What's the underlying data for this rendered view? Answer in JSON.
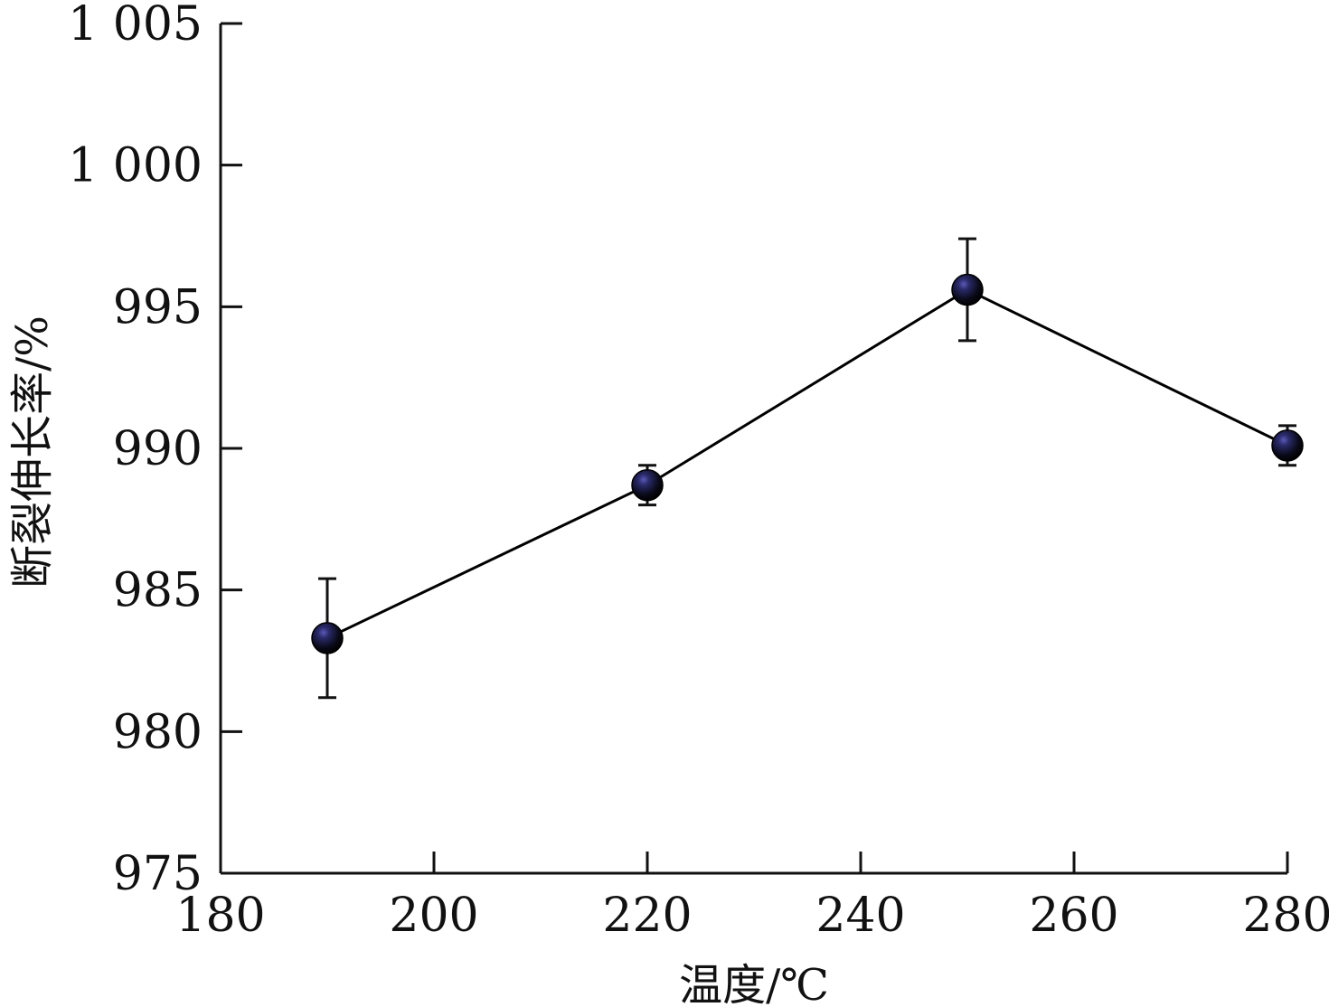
{
  "chart_data": {
    "type": "line",
    "title": "",
    "xlabel": "温度/℃",
    "ylabel": "断裂伸长率/%",
    "xlim": [
      180,
      280
    ],
    "ylim": [
      975,
      1005
    ],
    "x_ticks": [
      180,
      200,
      220,
      240,
      260,
      280
    ],
    "y_ticks": [
      975,
      980,
      985,
      990,
      995,
      1000,
      1005
    ],
    "x_tick_labels": [
      "180",
      "200",
      "220",
      "240",
      "260",
      "280"
    ],
    "y_tick_labels": [
      "975",
      "980",
      "985",
      "990",
      "995",
      "1 000",
      "1 005"
    ],
    "grid": false,
    "series": [
      {
        "x": [
          190,
          220,
          250,
          280
        ],
        "y": [
          983.3,
          988.7,
          995.6,
          990.1
        ],
        "error": [
          2.1,
          0.7,
          1.8,
          0.7
        ],
        "color": "#000000",
        "marker_highlight": "#3a3a8c"
      }
    ]
  }
}
